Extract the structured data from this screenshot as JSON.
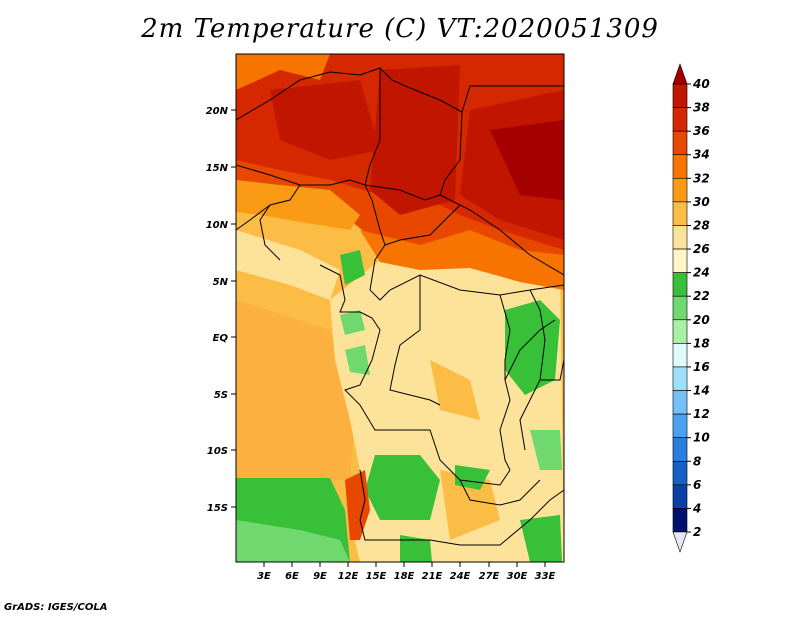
{
  "title": "2m Temperature (C) VT:2020051309",
  "footer": "GrADS: IGES/COLA",
  "map": {
    "lat_labels": [
      "20N",
      "15N",
      "10N",
      "5N",
      "EQ",
      "5S",
      "10S",
      "15S"
    ],
    "lon_labels": [
      "3E",
      "6E",
      "9E",
      "12E",
      "15E",
      "18E",
      "21E",
      "24E",
      "27E",
      "30E",
      "33E"
    ]
  },
  "colorbar": {
    "labels": [
      "40",
      "38",
      "36",
      "34",
      "32",
      "30",
      "28",
      "26",
      "24",
      "22",
      "20",
      "18",
      "16",
      "14",
      "12",
      "10",
      "8",
      "6",
      "4",
      "2"
    ],
    "colors": [
      "#a50000",
      "#c11500",
      "#d62800",
      "#e84700",
      "#f77400",
      "#fb9b15",
      "#fbbd45",
      "#fde39a",
      "#fdf5c4",
      "#38c038",
      "#6fd86f",
      "#a8f0a8",
      "#e0fbfb",
      "#a0e0fb",
      "#75c0f8",
      "#4ba0f0",
      "#2a80e0",
      "#1660c8",
      "#0a40a8",
      "#00106e"
    ]
  }
}
